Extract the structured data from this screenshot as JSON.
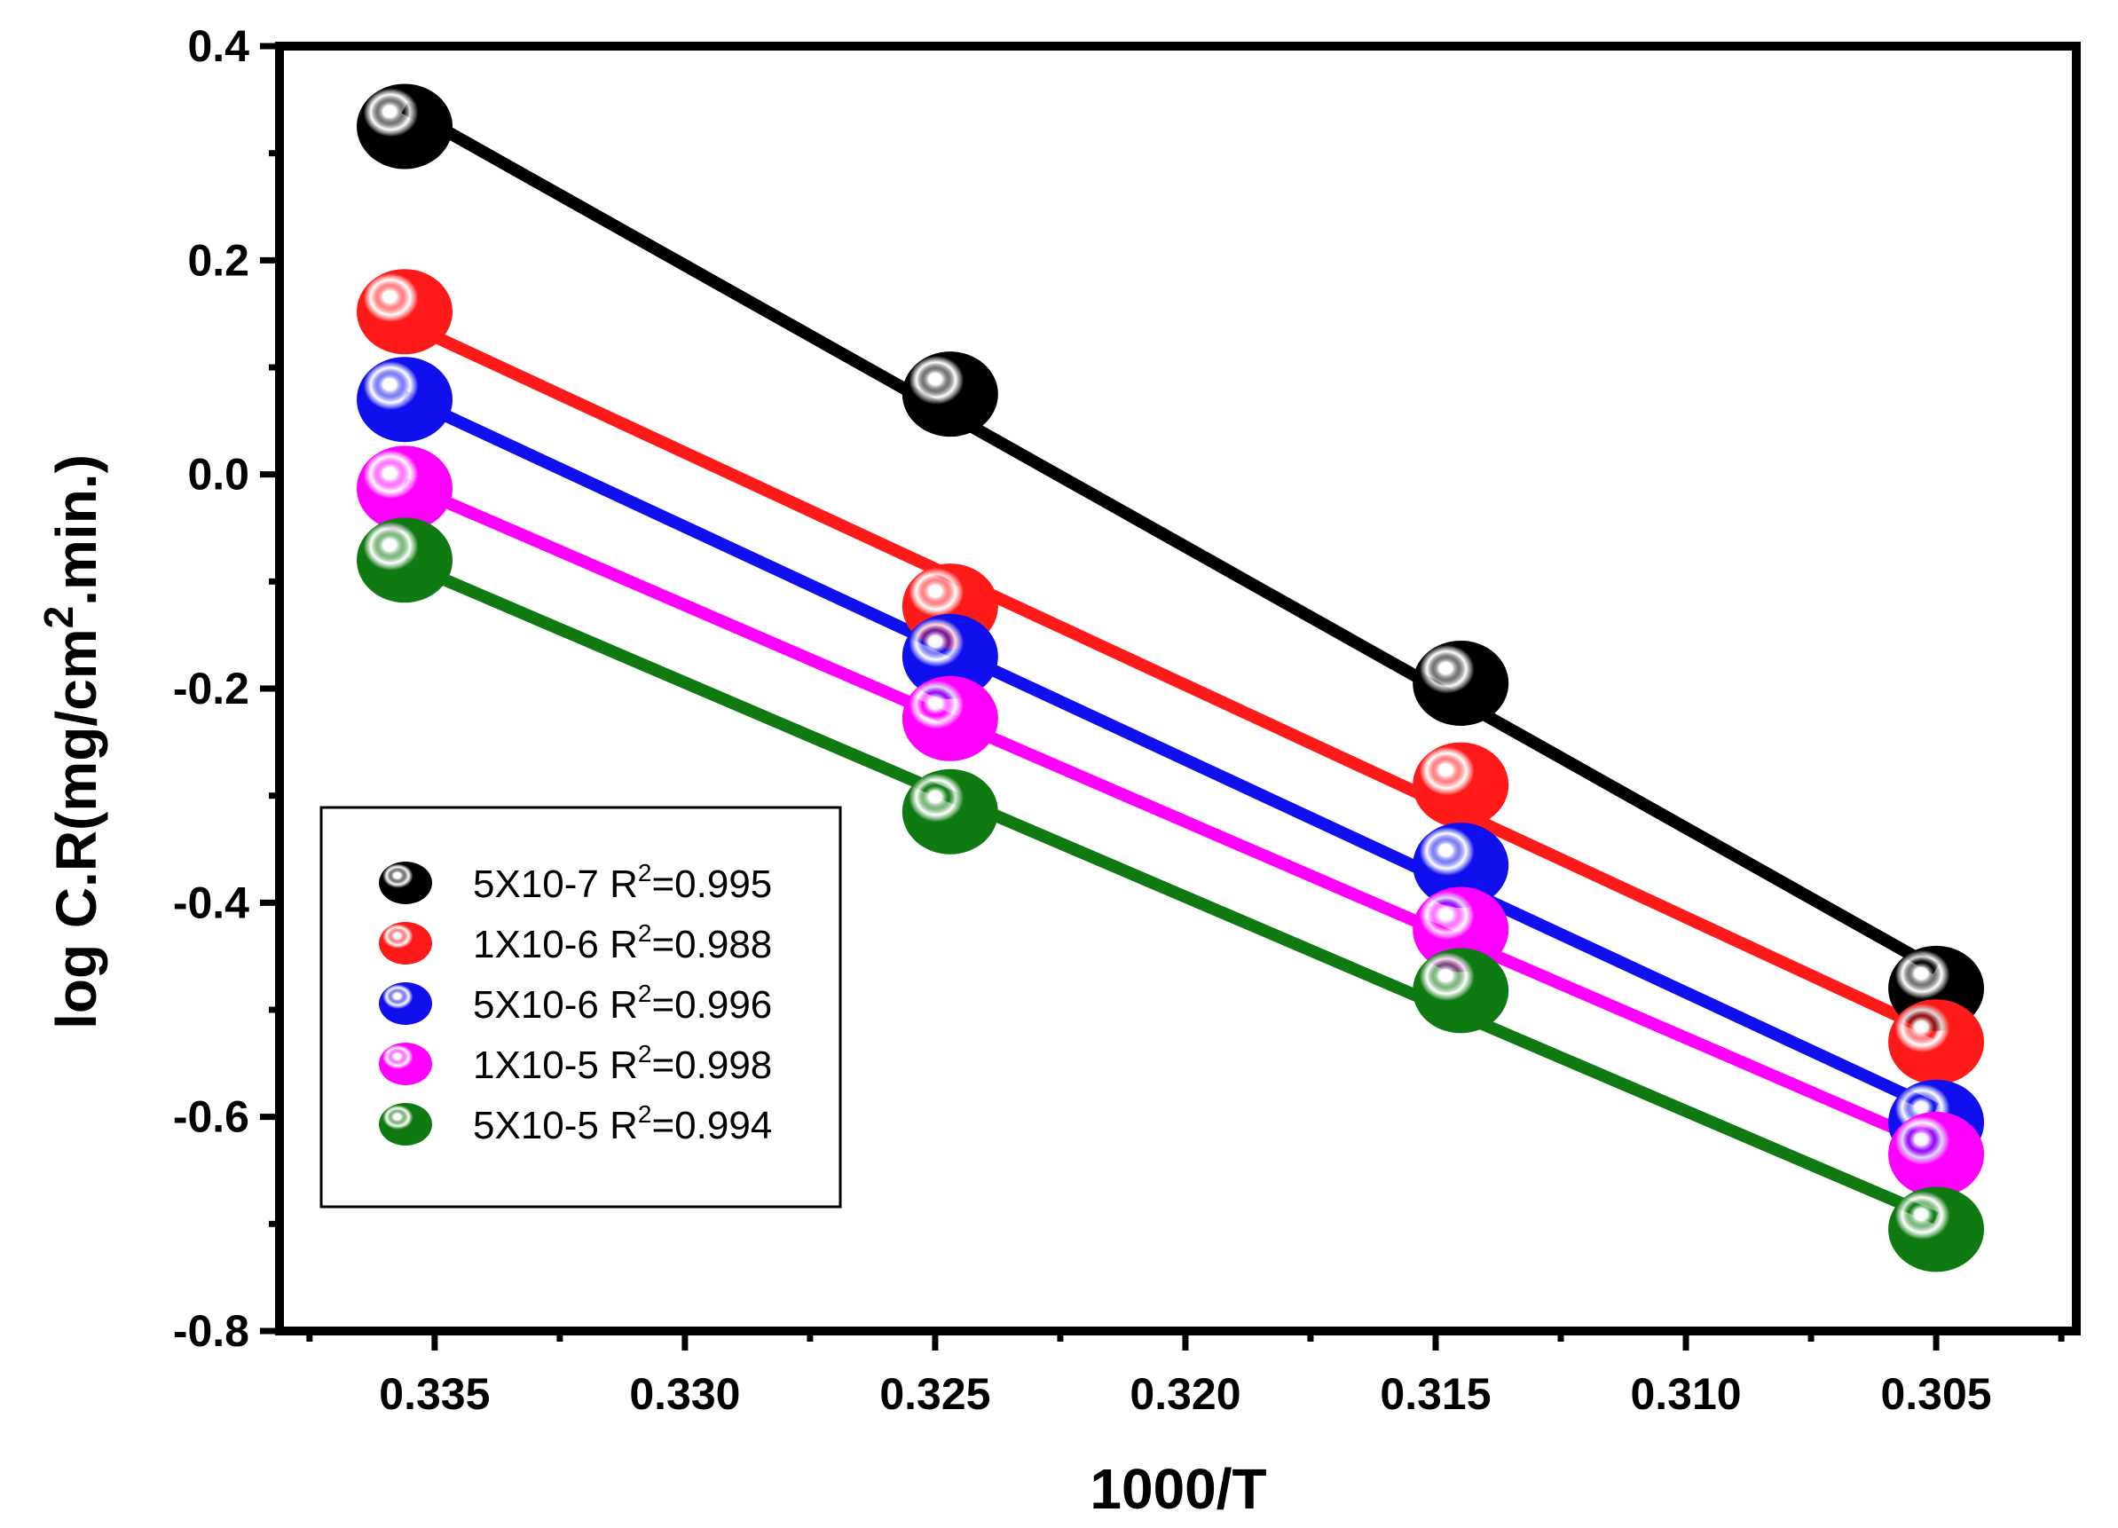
{
  "chart_data": {
    "type": "scatter",
    "title": "",
    "xlabel": "1000/T",
    "ylabel_main": "log C.R(mg/cm",
    "ylabel_sup": "2",
    "ylabel_tail": ".min.)",
    "xlim": [
      0.3381,
      0.3022
    ],
    "ylim": [
      -0.8,
      0.4
    ],
    "x_major_ticks": [
      0.335,
      0.33,
      0.325,
      0.32,
      0.315,
      0.31,
      0.305
    ],
    "x_tick_labels": [
      "0.335",
      "0.330",
      "0.325",
      "0.320",
      "0.315",
      "0.310",
      "0.305"
    ],
    "y_major_ticks": [
      0.4,
      0.2,
      0.0,
      -0.2,
      -0.4,
      -0.6,
      -0.8
    ],
    "y_tick_labels": [
      "0.4",
      "0.2",
      "0.0",
      "-0.2",
      "-0.4",
      "-0.6",
      "-0.8"
    ],
    "x": [
      0.3356,
      0.3247,
      0.3145,
      0.305
    ],
    "legend_position": "lower-left",
    "series": [
      {
        "name": "5X10-7",
        "r2_label": "=0.995",
        "color": "#000000",
        "values": [
          0.325,
          0.075,
          -0.195,
          -0.48
        ]
      },
      {
        "name": "1X10-6",
        "r2_label": "=0.988",
        "color": "#ff1a1a",
        "values": [
          0.152,
          -0.123,
          -0.29,
          -0.53
        ]
      },
      {
        "name": "5X10-6",
        "r2_label": "=0.996",
        "color": "#1010ee",
        "values": [
          0.07,
          -0.17,
          -0.365,
          -0.605
        ]
      },
      {
        "name": "1X10-5",
        "r2_label": "=0.998",
        "color": "#ff00ff",
        "values": [
          -0.013,
          -0.228,
          -0.425,
          -0.635
        ]
      },
      {
        "name": "5X10-5",
        "r2_label": "=0.994",
        "color": "#0f7a12",
        "values": [
          -0.08,
          -0.315,
          -0.482,
          -0.705
        ]
      }
    ],
    "r2_prefix": "R",
    "r2_sup": "2"
  }
}
